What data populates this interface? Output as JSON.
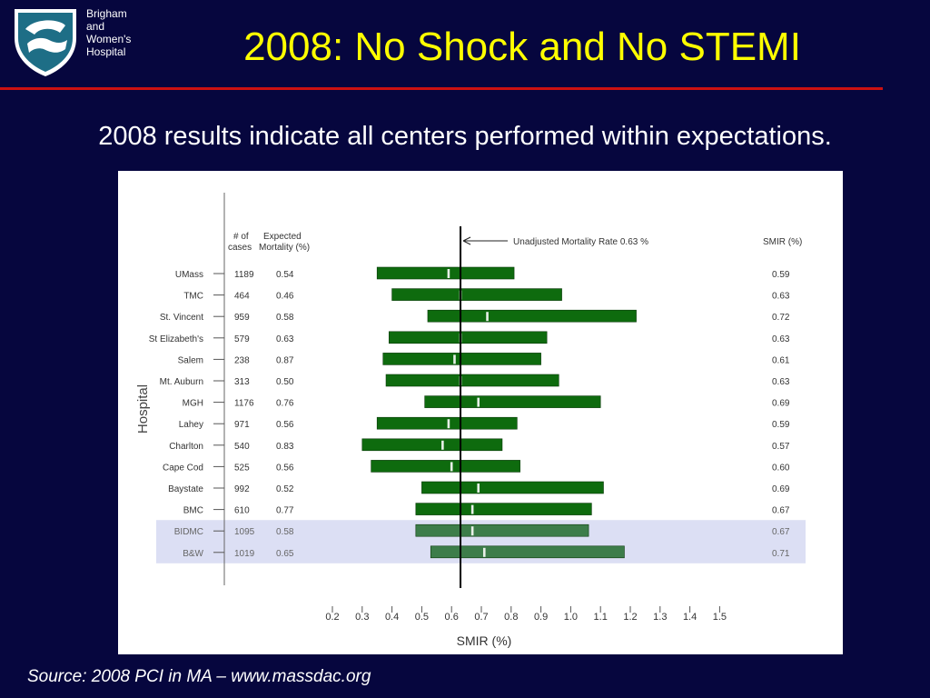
{
  "header": {
    "institution_lines": [
      "Brigham",
      "and",
      "Women's",
      "Hospital"
    ],
    "title": "2008: No Shock and No STEMI"
  },
  "subtitle": "2008 results indicate all centers performed within expectations.",
  "source": "Source:  2008 PCI in MA – www.massdac.org",
  "colors": {
    "background": "#06063e",
    "title": "#ffff00",
    "rule": "#cc1111",
    "bar": "#0e6b0e",
    "bar_highlight": "#3d7d4a",
    "highlight_band": "#dcdff4",
    "reference_line": "#000000"
  },
  "chart_data": {
    "type": "bar",
    "orientation": "horizontal-interval",
    "xlabel": "SMIR (%)",
    "ylabel": "Hospital",
    "xlim": [
      0.2,
      1.5
    ],
    "x_ticks": [
      0.2,
      0.3,
      0.4,
      0.5,
      0.6,
      0.7,
      0.8,
      0.9,
      1.0,
      1.1,
      1.2,
      1.3,
      1.4,
      1.5
    ],
    "x_tick_labels": [
      "0.2",
      "0.3",
      "0.4",
      "0.5",
      "0.6",
      "0.7",
      "0.8",
      "0.9",
      "1.0",
      "1.1",
      "1.2",
      "1.3",
      "1.4",
      "1.5"
    ],
    "column_headers": {
      "cases_line1": "# of",
      "cases_line2": "cases",
      "expected_line1": "Expected",
      "expected_line2": "Mortality (%)",
      "smir": "SMIR (%)"
    },
    "reference": {
      "label": "Unadjusted Mortality Rate  0.63 %",
      "value": 0.63
    },
    "hospitals": [
      {
        "name": "UMass",
        "cases": "1189",
        "expected": "0.54",
        "smir": "0.59",
        "lower": 0.35,
        "upper": 0.81,
        "highlight": false
      },
      {
        "name": "TMC",
        "cases": "464",
        "expected": "0.46",
        "smir": "0.63",
        "lower": 0.4,
        "upper": 0.97,
        "highlight": false
      },
      {
        "name": "St. Vincent",
        "cases": "959",
        "expected": "0.58",
        "smir": "0.72",
        "lower": 0.52,
        "upper": 1.22,
        "highlight": false
      },
      {
        "name": "St Elizabeth's",
        "cases": "579",
        "expected": "0.63",
        "smir": "0.63",
        "lower": 0.39,
        "upper": 0.92,
        "highlight": false
      },
      {
        "name": "Salem",
        "cases": "238",
        "expected": "0.87",
        "smir": "0.61",
        "lower": 0.37,
        "upper": 0.9,
        "highlight": false
      },
      {
        "name": "Mt. Auburn",
        "cases": "313",
        "expected": "0.50",
        "smir": "0.63",
        "lower": 0.38,
        "upper": 0.96,
        "highlight": false
      },
      {
        "name": "MGH",
        "cases": "1176",
        "expected": "0.76",
        "smir": "0.69",
        "lower": 0.51,
        "upper": 1.1,
        "highlight": false
      },
      {
        "name": "Lahey",
        "cases": "971",
        "expected": "0.56",
        "smir": "0.59",
        "lower": 0.35,
        "upper": 0.82,
        "highlight": false
      },
      {
        "name": "Charlton",
        "cases": "540",
        "expected": "0.83",
        "smir": "0.57",
        "lower": 0.3,
        "upper": 0.77,
        "highlight": false
      },
      {
        "name": "Cape Cod",
        "cases": "525",
        "expected": "0.56",
        "smir": "0.60",
        "lower": 0.33,
        "upper": 0.83,
        "highlight": false
      },
      {
        "name": "Baystate",
        "cases": "992",
        "expected": "0.52",
        "smir": "0.69",
        "lower": 0.5,
        "upper": 1.11,
        "highlight": false
      },
      {
        "name": "BMC",
        "cases": "610",
        "expected": "0.77",
        "smir": "0.67",
        "lower": 0.48,
        "upper": 1.07,
        "highlight": false
      },
      {
        "name": "BIDMC",
        "cases": "1095",
        "expected": "0.58",
        "smir": "0.67",
        "lower": 0.48,
        "upper": 1.06,
        "highlight": true
      },
      {
        "name": "B&W",
        "cases": "1019",
        "expected": "0.65",
        "smir": "0.71",
        "lower": 0.53,
        "upper": 1.18,
        "highlight": true
      }
    ]
  }
}
